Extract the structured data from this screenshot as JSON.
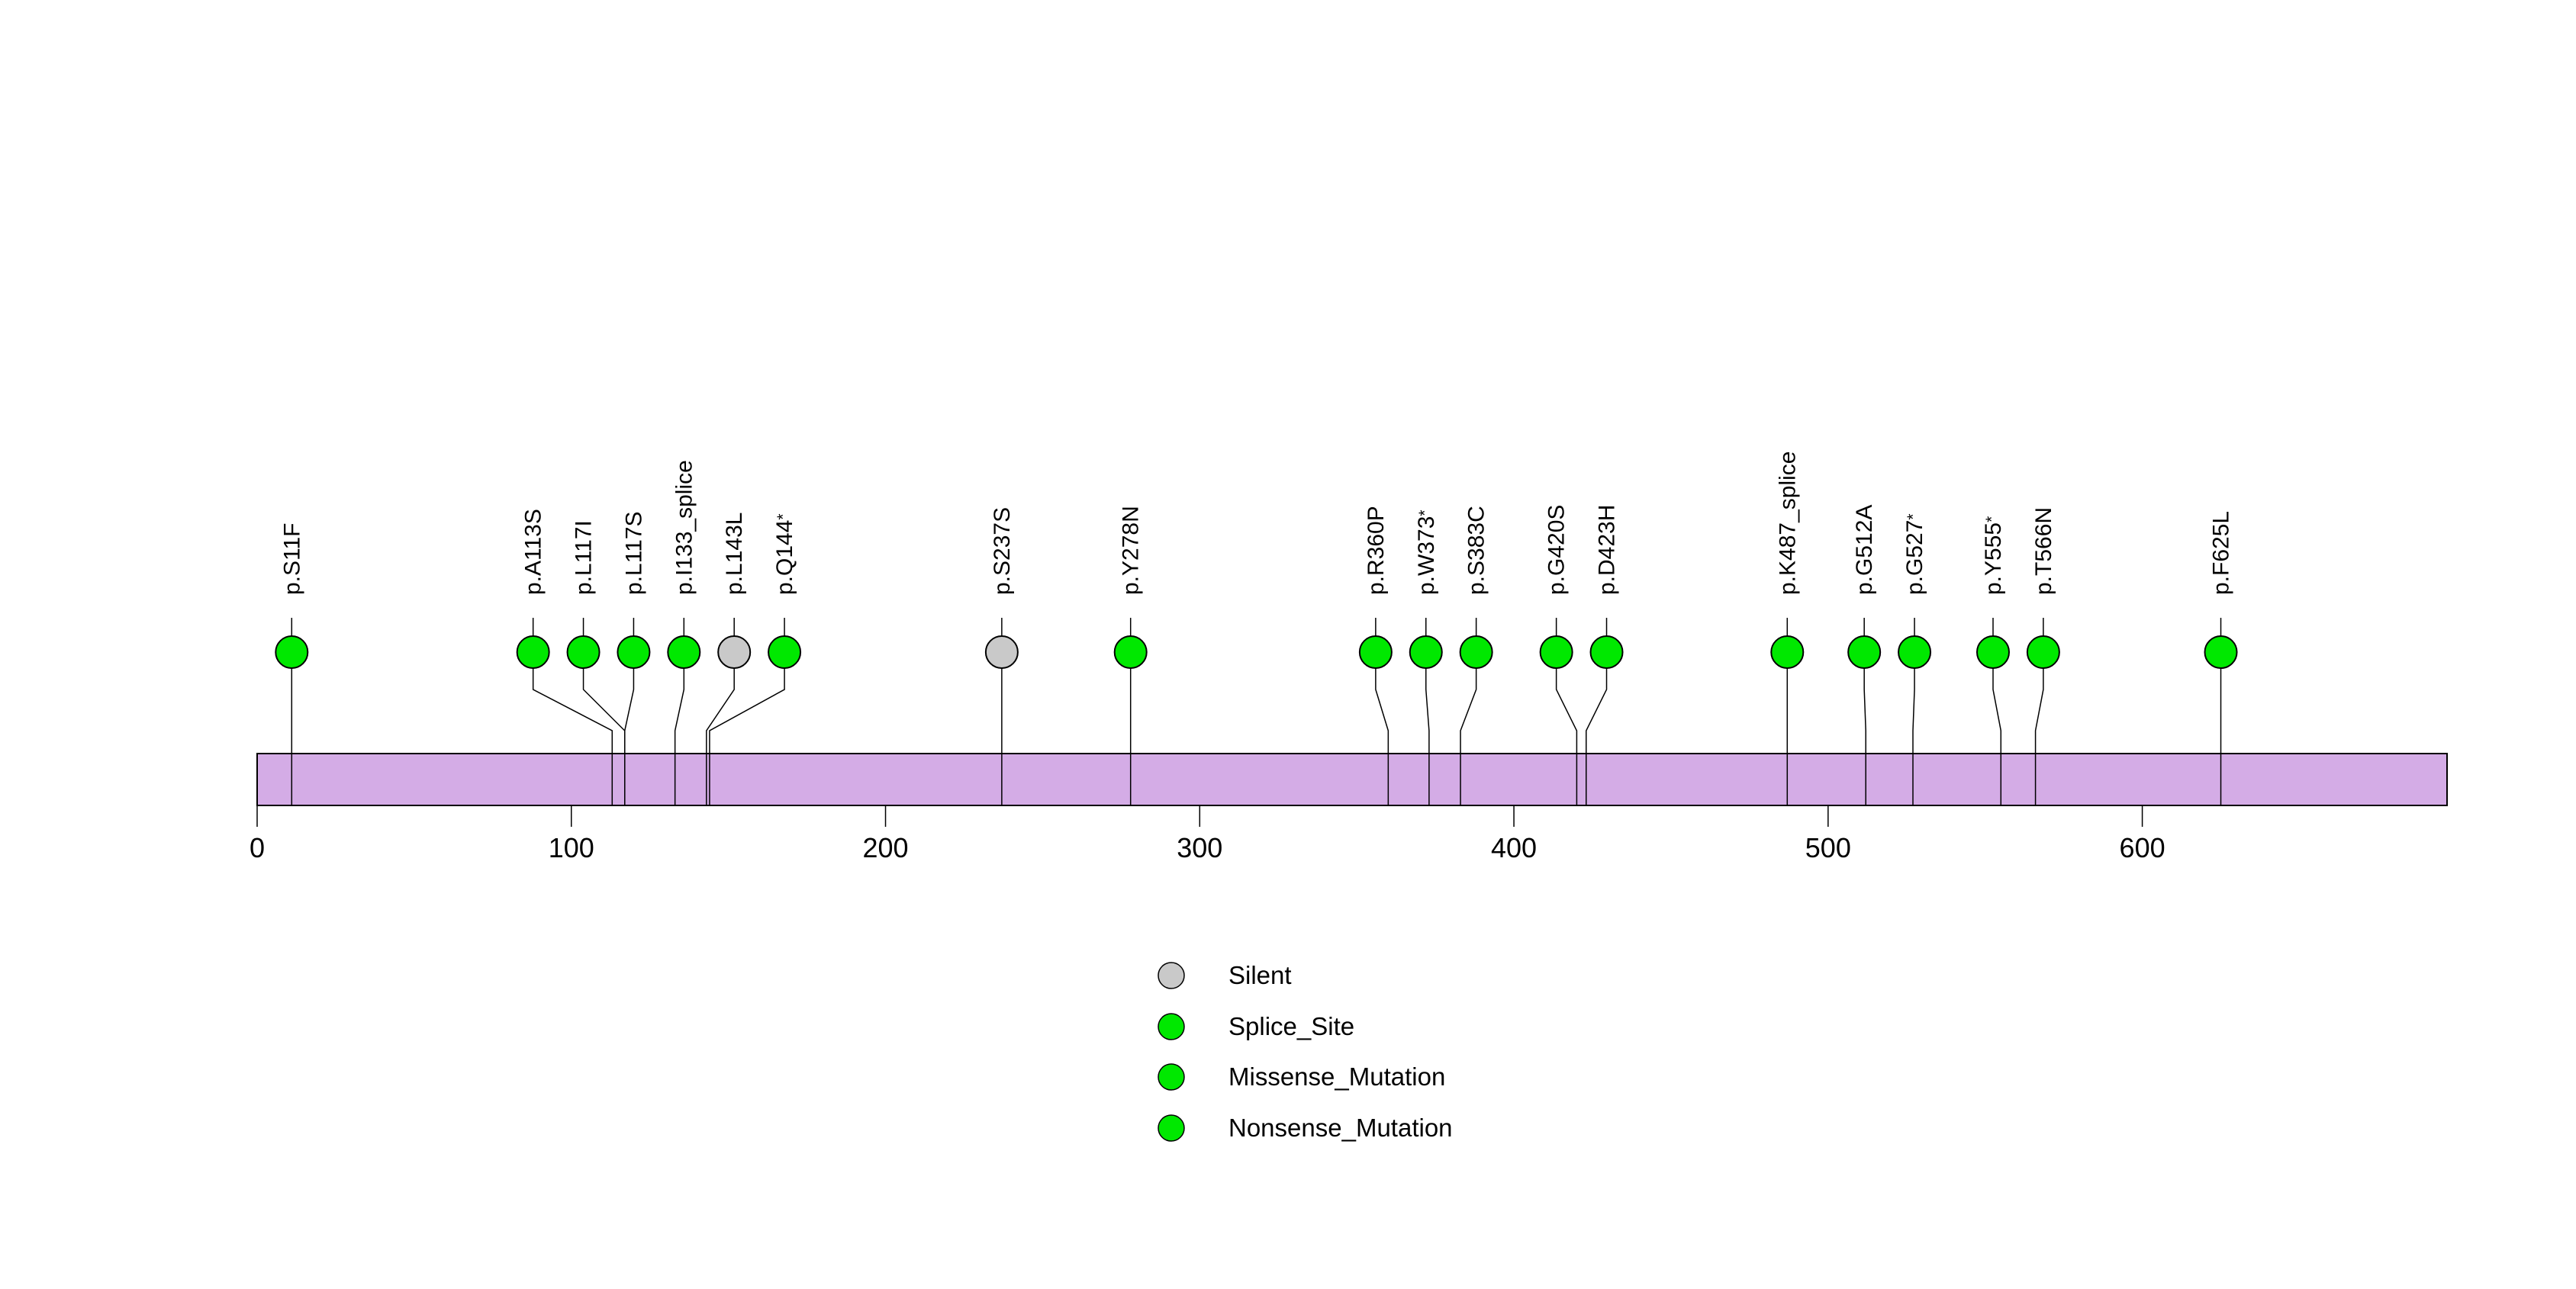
{
  "chart_data": {
    "type": "lollipop",
    "description": "Protein mutation lollipop plot",
    "x_axis": {
      "min": 0,
      "max": 697,
      "tick_values": [
        0,
        100,
        200,
        300,
        400,
        500,
        600
      ],
      "tick_labels": [
        "0",
        "100",
        "200",
        "300",
        "400",
        "500",
        "600"
      ]
    },
    "protein_backbone": {
      "aa_start": 0,
      "aa_end": 697,
      "fill_color": "#D4ACE6",
      "border_color": "#000000"
    },
    "marker_colors": {
      "Silent": "#C9C9C9",
      "Splice_Site": "#00E800",
      "Missense_Mutation": "#00E800",
      "Nonsense_Mutation": "#00E800"
    },
    "mutations": [
      {
        "label": "p.S11F",
        "position": 11,
        "type": "Missense_Mutation"
      },
      {
        "label": "p.A113S",
        "position": 113,
        "type": "Missense_Mutation"
      },
      {
        "label": "p.L117I",
        "position": 117,
        "type": "Missense_Mutation"
      },
      {
        "label": "p.L117S",
        "position": 117,
        "type": "Missense_Mutation"
      },
      {
        "label": "p.I133_splice",
        "position": 133,
        "type": "Splice_Site"
      },
      {
        "label": "p.L143L",
        "position": 143,
        "type": "Silent"
      },
      {
        "label": "p.Q144*",
        "position": 144,
        "type": "Nonsense_Mutation"
      },
      {
        "label": "p.S237S",
        "position": 237,
        "type": "Silent"
      },
      {
        "label": "p.Y278N",
        "position": 278,
        "type": "Missense_Mutation"
      },
      {
        "label": "p.R360P",
        "position": 360,
        "type": "Missense_Mutation"
      },
      {
        "label": "p.W373*",
        "position": 373,
        "type": "Nonsense_Mutation"
      },
      {
        "label": "p.S383C",
        "position": 383,
        "type": "Missense_Mutation"
      },
      {
        "label": "p.G420S",
        "position": 420,
        "type": "Missense_Mutation"
      },
      {
        "label": "p.D423H",
        "position": 423,
        "type": "Missense_Mutation"
      },
      {
        "label": "p.K487_splice",
        "position": 487,
        "type": "Splice_Site"
      },
      {
        "label": "p.G512A",
        "position": 512,
        "type": "Missense_Mutation"
      },
      {
        "label": "p.G527*",
        "position": 527,
        "type": "Nonsense_Mutation"
      },
      {
        "label": "p.Y555*",
        "position": 555,
        "type": "Nonsense_Mutation"
      },
      {
        "label": "p.T566N",
        "position": 566,
        "type": "Missense_Mutation"
      },
      {
        "label": "p.F625L",
        "position": 625,
        "type": "Missense_Mutation"
      }
    ],
    "legend": {
      "position": "bottom-center",
      "items": [
        {
          "label": "Silent",
          "type": "Silent"
        },
        {
          "label": "Splice_Site",
          "type": "Splice_Site"
        },
        {
          "label": "Missense_Mutation",
          "type": "Missense_Mutation"
        },
        {
          "label": "Nonsense_Mutation",
          "type": "Nonsense_Mutation"
        }
      ]
    }
  }
}
